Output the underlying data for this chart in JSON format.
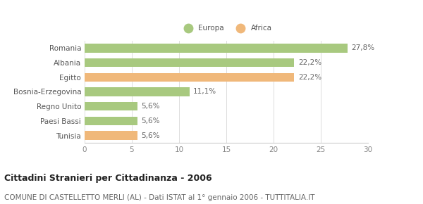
{
  "categories": [
    "Romania",
    "Albania",
    "Egitto",
    "Bosnia-Erzegovina",
    "Regno Unito",
    "Paesi Bassi",
    "Tunisia"
  ],
  "values": [
    27.8,
    22.2,
    22.2,
    11.1,
    5.6,
    5.6,
    5.6
  ],
  "labels": [
    "27,8%",
    "22,2%",
    "22,2%",
    "11,1%",
    "5,6%",
    "5,6%",
    "5,6%"
  ],
  "colors": [
    "#a8c97f",
    "#a8c97f",
    "#f0b87a",
    "#a8c97f",
    "#a8c97f",
    "#a8c97f",
    "#f0b87a"
  ],
  "europa_color": "#a8c97f",
  "africa_color": "#f0b87a",
  "xlim": [
    0,
    30
  ],
  "xticks": [
    0,
    5,
    10,
    15,
    20,
    25,
    30
  ],
  "title": "Cittadini Stranieri per Cittadinanza - 2006",
  "subtitle": "COMUNE DI CASTELLETTO MERLI (AL) - Dati ISTAT al 1° gennaio 2006 - TUTTITALIA.IT",
  "title_fontsize": 9,
  "subtitle_fontsize": 7.5,
  "legend_europa": "Europa",
  "legend_africa": "Africa",
  "bg_color": "#ffffff",
  "bar_height": 0.6,
  "label_fontsize": 7.5,
  "tick_fontsize": 7.5,
  "ytick_fontsize": 7.5
}
